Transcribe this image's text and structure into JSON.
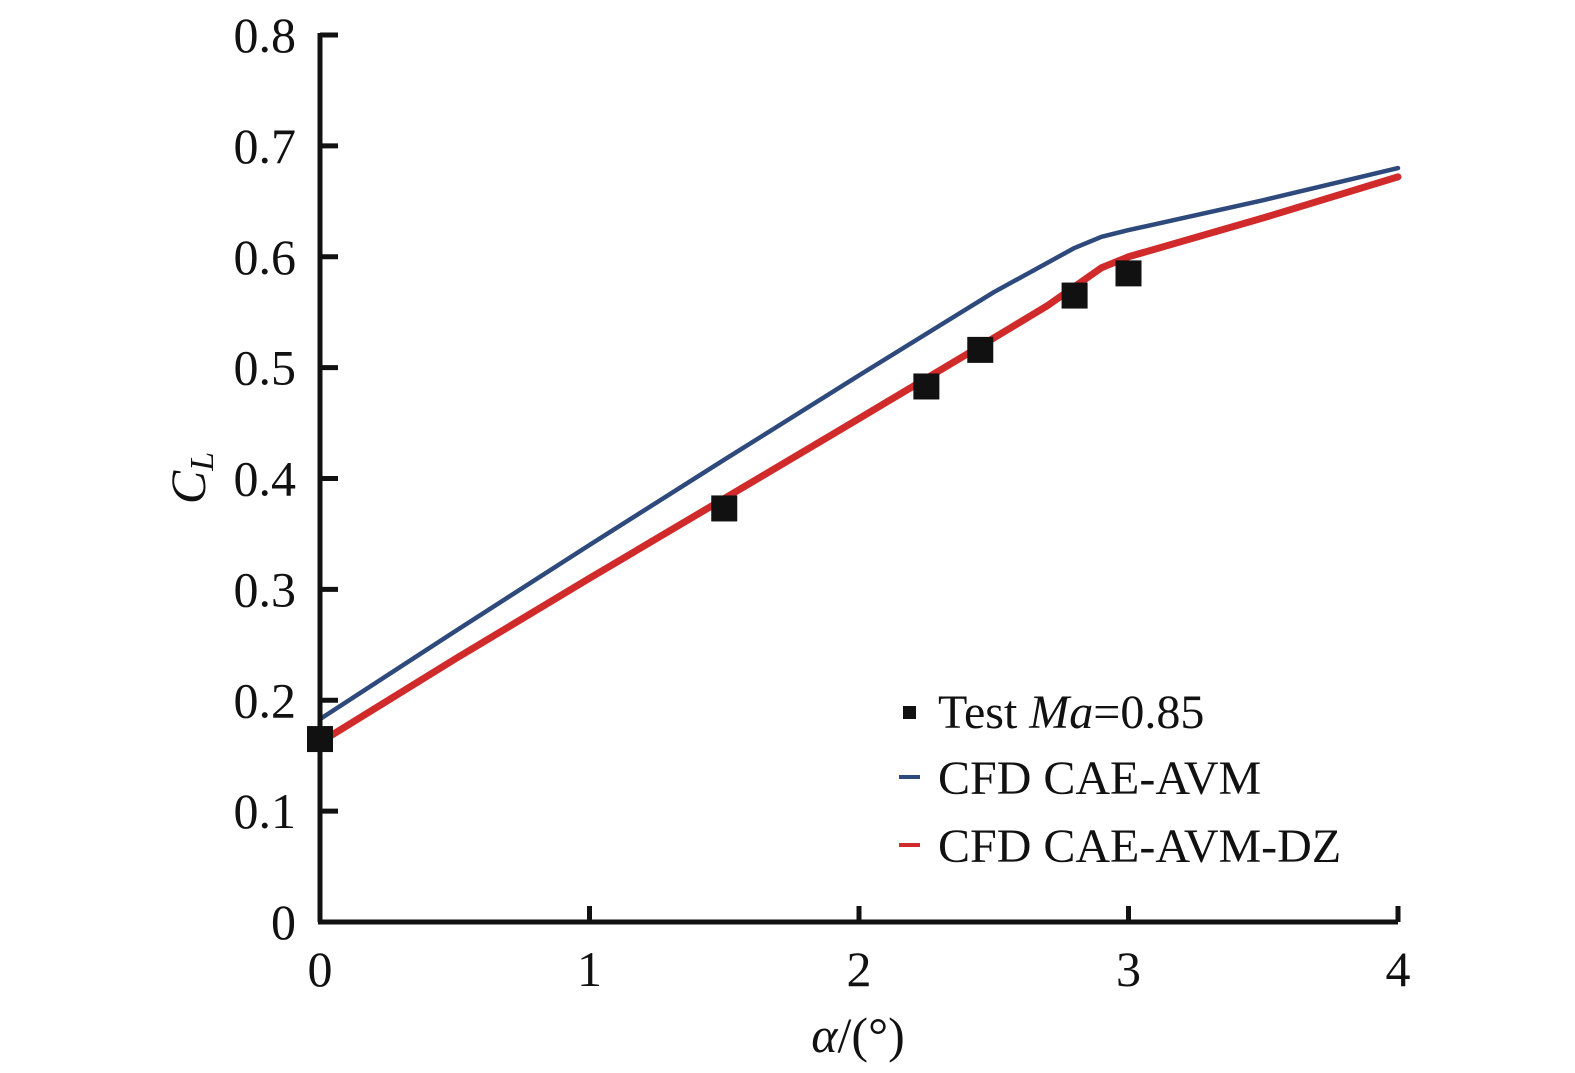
{
  "chart_data": {
    "type": "line",
    "title": "",
    "xlabel_symbol": "α",
    "xlabel_unit": "/(°)",
    "ylabel_main": "C",
    "ylabel_sub": "L",
    "xlim": [
      0,
      4
    ],
    "ylim": [
      0,
      0.8
    ],
    "xticks": [
      0,
      1,
      2,
      3,
      4
    ],
    "xtick_labels": [
      "0",
      "1",
      "2",
      "3",
      "4"
    ],
    "yticks": [
      0,
      0.1,
      0.2,
      0.3,
      0.4,
      0.5,
      0.6,
      0.7,
      0.8
    ],
    "ytick_labels": [
      "0",
      "0.1",
      "0.2",
      "0.3",
      "0.4",
      "0.5",
      "0.6",
      "0.7",
      "0.8"
    ],
    "grid": false,
    "legend_position": "bottom-right",
    "series": [
      {
        "name": "Test Ma=0.85",
        "name_prefix": "Test ",
        "name_italic": "Ma",
        "name_suffix": "=0.85",
        "kind": "scatter",
        "marker": "square",
        "color": "#111111",
        "x": [
          0,
          1.5,
          2.25,
          2.45,
          2.8,
          3.0
        ],
        "y": [
          0.165,
          0.373,
          0.483,
          0.516,
          0.565,
          0.585
        ]
      },
      {
        "name": "CFD CAE-AVM",
        "kind": "line",
        "color": "#2e4a7d",
        "x": [
          0,
          0.5,
          1.0,
          1.5,
          2.0,
          2.3,
          2.5,
          2.8,
          2.9,
          3.0,
          3.5,
          4.0
        ],
        "y": [
          0.183,
          0.262,
          0.34,
          0.417,
          0.493,
          0.538,
          0.568,
          0.608,
          0.618,
          0.624,
          0.651,
          0.68
        ]
      },
      {
        "name": "CFD CAE-AVM-DZ",
        "kind": "line",
        "color": "#d02a2a",
        "x": [
          0,
          0.5,
          1.0,
          1.5,
          2.0,
          2.4,
          2.7,
          2.9,
          3.0,
          3.5,
          4.0
        ],
        "y": [
          0.162,
          0.237,
          0.31,
          0.382,
          0.454,
          0.512,
          0.556,
          0.59,
          0.6,
          0.635,
          0.672
        ]
      }
    ]
  }
}
